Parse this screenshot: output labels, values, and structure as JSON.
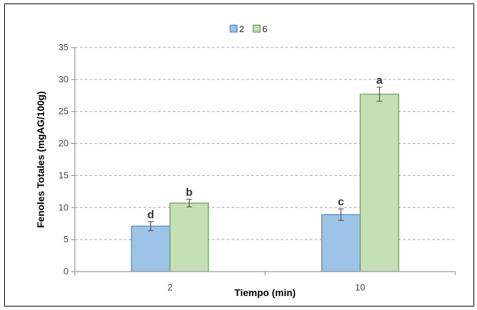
{
  "chart_data": {
    "type": "bar",
    "title": "",
    "xlabel": "Tiempo (min)",
    "ylabel": "Fenoles Totales (mgAG/100g)",
    "ylim": [
      0,
      35
    ],
    "yticks": [
      0,
      5,
      10,
      15,
      20,
      25,
      30,
      35
    ],
    "categories": [
      "2",
      "10"
    ],
    "grid": true,
    "legend_position": "top-center",
    "series": [
      {
        "name": "2",
        "color": "#9DC3E6",
        "edge_color": "#2E75B6",
        "values": [
          7.1,
          8.9
        ],
        "errors": [
          0.7,
          0.9
        ],
        "letters": [
          "d",
          "c"
        ]
      },
      {
        "name": "6",
        "color": "#C5E0B4",
        "edge_color": "#548235",
        "values": [
          10.7,
          27.7
        ],
        "errors": [
          0.6,
          1.1
        ],
        "letters": [
          "b",
          "a"
        ]
      }
    ]
  }
}
